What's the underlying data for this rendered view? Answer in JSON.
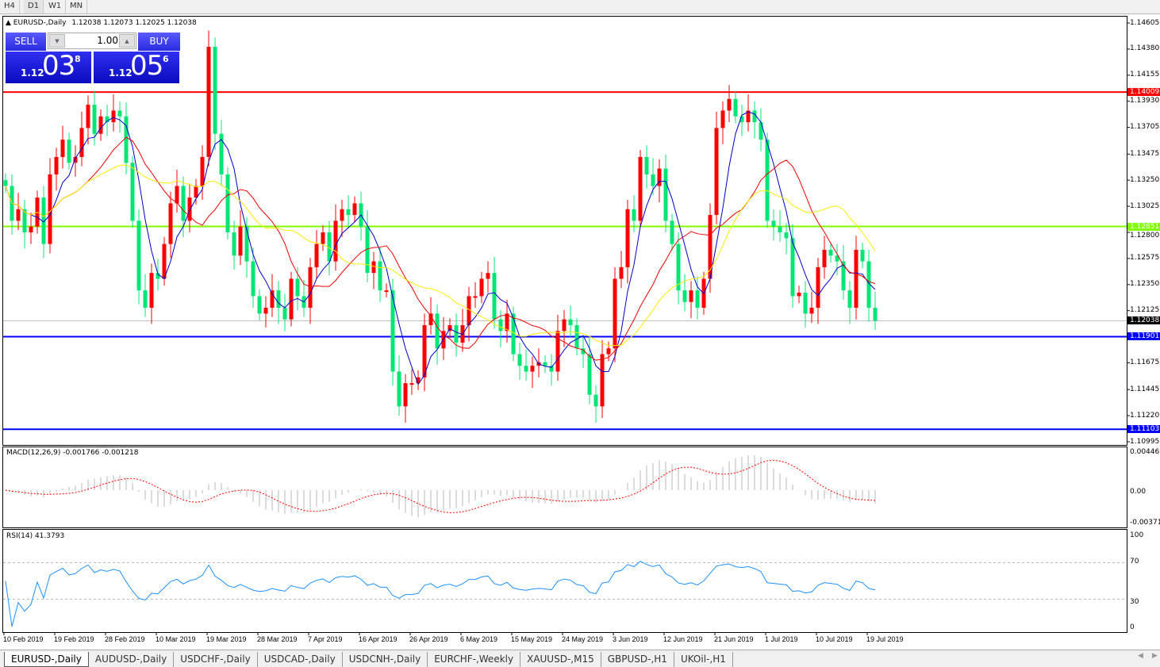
{
  "timeframes": [
    "H4",
    "D1",
    "W1",
    "MN"
  ],
  "active_timeframe": "D1",
  "chart_header": {
    "symbol": "EURUSD-,Daily",
    "ohlc": "1.12038 1.12073 1.12025 1.12038"
  },
  "trade_panel": {
    "sell_label": "SELL",
    "buy_label": "BUY",
    "lot": "1.00",
    "sell": {
      "small": "1.12",
      "big": "03",
      "sup": "8"
    },
    "buy": {
      "small": "1.12",
      "big": "05",
      "sup": "6"
    }
  },
  "colors": {
    "bull": "#ff0000",
    "bear": "#00e676",
    "ma_fast": "#0000cc",
    "ma_mid": "#ee0000",
    "ma_slow": "#ffee00",
    "macd_hist": "#b8b8b8",
    "macd_signal": "#ff0000",
    "rsi": "#1e90ff"
  },
  "price_axis": [
    "1.14605",
    "1.14380",
    "1.14155",
    "1.13930",
    "1.13705",
    "1.13475",
    "1.13250",
    "1.13025",
    "1.12800",
    "1.12575",
    "1.12350",
    "1.12125",
    "1.11675",
    "1.11445",
    "1.11220",
    "1.10995"
  ],
  "levels": [
    {
      "price": "1.14009",
      "color": "#ff0000"
    },
    {
      "price": "1.12851",
      "color": "#80ff00"
    },
    {
      "price": "1.12038",
      "color": "#000000",
      "current": true
    },
    {
      "price": "1.11901",
      "color": "#0000ff"
    },
    {
      "price": "1.11103",
      "color": "#0000ff"
    }
  ],
  "macd": {
    "title": "MACD(12,26,9) -0.001766 -0.001218",
    "axis": [
      "0.004465",
      "0.00",
      "-0.003715"
    ]
  },
  "rsi": {
    "title": "RSI(14) 41.3793",
    "axis": [
      "100",
      "70",
      "30",
      "0"
    ]
  },
  "chart_data": {
    "type": "candlestick",
    "x_labels": [
      "10 Feb 2019",
      "19 Feb 2019",
      "28 Feb 2019",
      "10 Mar 2019",
      "19 Mar 2019",
      "28 Mar 2019",
      "7 Apr 2019",
      "16 Apr 2019",
      "26 Apr 2019",
      "6 May 2019",
      "15 May 2019",
      "24 May 2019",
      "3 Jun 2019",
      "12 Jun 2019",
      "21 Jun 2019",
      "1 Jul 2019",
      "10 Jul 2019",
      "19 Jul 2019"
    ],
    "ylim": [
      1.10995,
      1.14605
    ],
    "closes": [
      1.132,
      1.129,
      1.13,
      1.128,
      1.1285,
      1.131,
      1.127,
      1.133,
      1.1345,
      1.136,
      1.134,
      1.1345,
      1.137,
      1.139,
      1.1365,
      1.138,
      1.1375,
      1.1385,
      1.138,
      1.134,
      1.129,
      1.123,
      1.1215,
      1.1245,
      1.124,
      1.127,
      1.1305,
      1.132,
      1.129,
      1.131,
      1.132,
      1.1345,
      1.144,
      1.1365,
      1.133,
      1.128,
      1.126,
      1.1285,
      1.1255,
      1.1225,
      1.121,
      1.1215,
      1.123,
      1.1215,
      1.1205,
      1.124,
      1.1225,
      1.1215,
      1.125,
      1.127,
      1.128,
      1.1255,
      1.129,
      1.13,
      1.1295,
      1.1305,
      1.1285,
      1.1245,
      1.1255,
      1.123,
      1.123,
      1.116,
      1.113,
      1.115,
      1.115,
      1.1155,
      1.12,
      1.121,
      1.118,
      1.1195,
      1.12,
      1.1185,
      1.12,
      1.1225,
      1.1225,
      1.124,
      1.1245,
      1.1205,
      1.1195,
      1.121,
      1.1175,
      1.1165,
      1.116,
      1.1165,
      1.1168,
      1.1165,
      1.116,
      1.1195,
      1.1205,
      1.12,
      1.118,
      1.1175,
      1.114,
      1.113,
      1.1175,
      1.118,
      1.124,
      1.125,
      1.13,
      1.129,
      1.1345,
      1.133,
      1.132,
      1.1335,
      1.129,
      1.127,
      1.123,
      1.122,
      1.123,
      1.1215,
      1.124,
      1.1295,
      1.137,
      1.1385,
      1.1395,
      1.138,
      1.1375,
      1.1385,
      1.1375,
      1.136,
      1.129,
      1.1285,
      1.128,
      1.1275,
      1.1225,
      1.1228,
      1.121,
      1.1215,
      1.125,
      1.1265,
      1.126,
      1.1255,
      1.123,
      1.1215,
      1.1265,
      1.1255,
      1.1215,
      1.12038
    ]
  },
  "symbol_tabs": [
    "EURUSD-,Daily",
    "AUDUSD-,Daily",
    "USDCHF-,Daily",
    "USDCAD-,Daily",
    "USDCNH-,Daily",
    "EURCHF-,Weekly",
    "XAUUSD-,M15",
    "GBPUSD-,H1",
    "UKOil-,H1"
  ],
  "active_tab": 0
}
